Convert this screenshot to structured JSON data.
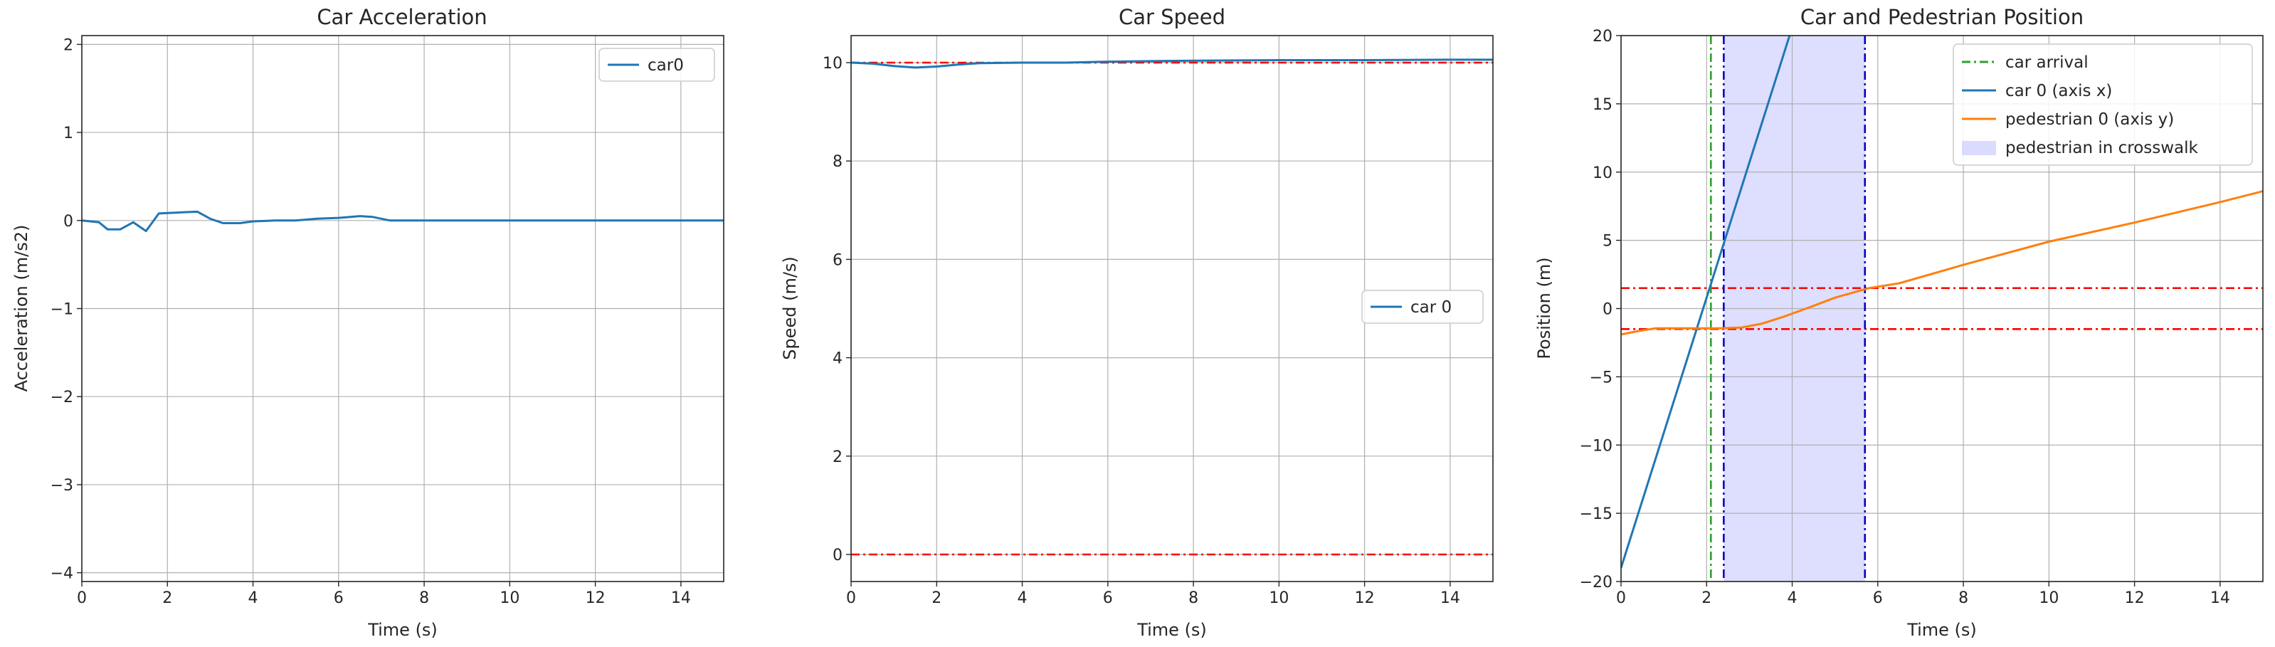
{
  "chart_data": [
    {
      "type": "line",
      "title": "Car Acceleration",
      "xlabel": "Time (s)",
      "ylabel": "Acceleration (m/s2)",
      "xlim": [
        0,
        15
      ],
      "ylim": [
        -4.1,
        2.1
      ],
      "xticks": [
        0,
        2,
        4,
        6,
        8,
        10,
        12,
        14
      ],
      "yticks": [
        -4,
        -3,
        -2,
        -1,
        0,
        1,
        2
      ],
      "grid": true,
      "legend_position": "upper right",
      "series": [
        {
          "name": "car0",
          "color": "#1f77b4",
          "style": "solid",
          "x": [
            0,
            0.4,
            0.6,
            0.9,
            1.2,
            1.5,
            1.8,
            2.2,
            2.7,
            3.0,
            3.3,
            3.7,
            4.0,
            4.5,
            5.0,
            5.5,
            6.0,
            6.5,
            6.8,
            7.2,
            8.0,
            9.0,
            10.0,
            12.0,
            15.0
          ],
          "y": [
            0.0,
            -0.02,
            -0.1,
            -0.1,
            -0.02,
            -0.12,
            0.08,
            0.09,
            0.1,
            0.02,
            -0.03,
            -0.03,
            -0.01,
            0.0,
            0.0,
            0.02,
            0.03,
            0.05,
            0.04,
            0.0,
            0.0,
            0.0,
            0.0,
            0.0,
            0.0
          ]
        }
      ]
    },
    {
      "type": "line",
      "title": "Car Speed",
      "xlabel": "Time (s)",
      "ylabel": "Speed (m/s)",
      "xlim": [
        0,
        15
      ],
      "ylim": [
        -0.55,
        10.55
      ],
      "xticks": [
        0,
        2,
        4,
        6,
        8,
        10,
        12,
        14
      ],
      "yticks": [
        0,
        2,
        4,
        6,
        8,
        10
      ],
      "grid": true,
      "legend_position": "center right",
      "hlines": [
        {
          "y": 10,
          "color": "#ff0000",
          "style": "dashdot"
        },
        {
          "y": 0,
          "color": "#ff0000",
          "style": "dashdot"
        }
      ],
      "series": [
        {
          "name": "car 0",
          "color": "#1f77b4",
          "style": "solid",
          "x": [
            0,
            0.5,
            1.0,
            1.5,
            2.0,
            2.5,
            3.0,
            4.0,
            5.0,
            6.0,
            7.0,
            8.0,
            10.0,
            12.0,
            14.0,
            15.0
          ],
          "y": [
            10.0,
            9.98,
            9.93,
            9.9,
            9.92,
            9.96,
            9.99,
            10.0,
            10.0,
            10.02,
            10.03,
            10.04,
            10.05,
            10.05,
            10.06,
            10.06
          ]
        }
      ]
    },
    {
      "type": "line",
      "title": "Car and Pedestrian Position",
      "xlabel": "Time (s)",
      "ylabel": "Position (m)",
      "xlim": [
        0,
        15
      ],
      "ylim": [
        -20,
        20
      ],
      "xticks": [
        0,
        2,
        4,
        6,
        8,
        10,
        12,
        14
      ],
      "yticks": [
        -20,
        -15,
        -10,
        -5,
        0,
        5,
        10,
        15,
        20
      ],
      "grid": true,
      "legend_position": "upper right",
      "series": [
        {
          "name": "car arrival",
          "color": "#2ca02c",
          "style": "dashdot",
          "kind": "vline",
          "x": [
            2.1
          ]
        },
        {
          "name": "car 0 (axis x)",
          "color": "#1f77b4",
          "style": "solid",
          "x": [
            0,
            4.0
          ],
          "y": [
            -19,
            20.6
          ]
        },
        {
          "name": "pedestrian 0 (axis y)",
          "color": "#ff7f0e",
          "style": "solid",
          "x": [
            0,
            0.4,
            0.8,
            1.5,
            2.2,
            2.8,
            3.3,
            3.8,
            4.5,
            5.0,
            5.8,
            6.5,
            8.0,
            10.0,
            12.0,
            14.0,
            15.0
          ],
          "y": [
            -1.9,
            -1.65,
            -1.45,
            -1.45,
            -1.45,
            -1.4,
            -1.1,
            -0.6,
            0.2,
            0.8,
            1.5,
            1.85,
            3.2,
            4.9,
            6.3,
            7.8,
            8.6
          ]
        },
        {
          "name": "pedestrian in crosswalk",
          "color": "#ccccff",
          "kind": "span",
          "x": [
            2.4,
            5.7
          ]
        }
      ],
      "vlines": [
        {
          "x": 2.4,
          "color": "#0000cc",
          "style": "dashdot"
        },
        {
          "x": 5.7,
          "color": "#0000cc",
          "style": "dashdot"
        }
      ],
      "hlines": [
        {
          "y": 1.5,
          "color": "#ff0000",
          "style": "dashdot"
        },
        {
          "y": -1.5,
          "color": "#ff0000",
          "style": "dashdot"
        }
      ]
    }
  ]
}
